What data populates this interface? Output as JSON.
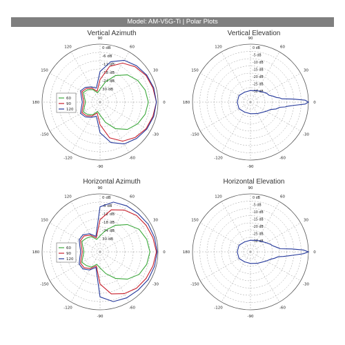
{
  "header": {
    "text": "Model: AM-V5G-Ti  |  Polar Plots",
    "background": "#7f7f7f"
  },
  "colors": {
    "series_60": "#3aa83a",
    "series_90": "#c81e2a",
    "series_120": "#22369a",
    "elevation_trace": "#22369a",
    "grid": "#9a9a9a"
  },
  "chart_data": [
    {
      "type": "polar",
      "title": "Vertical Azimuth",
      "angle_labels": [
        "90",
        "60",
        "30",
        "0",
        "-30",
        "-60",
        "-90",
        "-120",
        "-150",
        "180",
        "150",
        "120"
      ],
      "radial_labels": [
        "0 dB",
        "-6 dB",
        "-12 dB",
        "-18 dB",
        "-24 dB",
        "30 dB"
      ],
      "legend": [
        "60",
        "90",
        "120"
      ],
      "legend_placement": "left",
      "series": [
        {
          "name": "60",
          "angle_deg": [
            0,
            15,
            30,
            45,
            60,
            75,
            90,
            105,
            120,
            135,
            150,
            165,
            180
          ],
          "gain_db": [
            -6,
            -7,
            -9,
            -12,
            -17,
            -23,
            -28,
            -30,
            -27,
            -25,
            -24,
            -26,
            -27
          ]
        },
        {
          "name": "90",
          "angle_deg": [
            0,
            15,
            30,
            45,
            60,
            75,
            90,
            105,
            120,
            135,
            150,
            165,
            180
          ],
          "gain_db": [
            -1,
            -2,
            -3,
            -5,
            -8,
            -13,
            -22,
            -29,
            -26,
            -24,
            -23,
            -25,
            -26
          ]
        },
        {
          "name": "120",
          "angle_deg": [
            0,
            15,
            30,
            45,
            60,
            75,
            90,
            105,
            120,
            135,
            150,
            165,
            180
          ],
          "gain_db": [
            -1,
            -1.5,
            -2.5,
            -4,
            -6,
            -10,
            -17,
            -27,
            -25,
            -23,
            -22,
            -24,
            -25
          ]
        }
      ]
    },
    {
      "type": "polar",
      "title": "Vertical Elevation",
      "angle_labels": [
        "90",
        "60",
        "30",
        "0",
        "-30",
        "-60",
        "-90",
        "-120",
        "-150",
        "180",
        "150",
        "120"
      ],
      "radial_labels": [
        "0 dB",
        "-5 dB",
        "-10 dB",
        "-15 dB",
        "-20 dB",
        "-25 dB",
        "-30 dB"
      ],
      "series": [
        {
          "angle_deg": [
            0,
            2,
            4,
            6,
            8,
            10,
            15,
            20,
            30,
            45,
            60,
            90,
            120,
            150,
            180,
            -150,
            -120,
            -90,
            -60,
            -45,
            -30,
            -20,
            -15,
            -10,
            -8,
            -6,
            -4,
            -2
          ],
          "gain_db": [
            0,
            -2,
            -9,
            -16,
            -17,
            -19,
            -21,
            -23,
            -24,
            -26,
            -27,
            -28,
            -28,
            -27,
            -27,
            -27,
            -28,
            -28,
            -27,
            -26,
            -24,
            -22,
            -19,
            -17,
            -14,
            -12,
            -8,
            -2
          ]
        }
      ]
    },
    {
      "type": "polar",
      "title": "Horizontal Azimuth",
      "angle_labels": [
        "90",
        "60",
        "30",
        "0",
        "-30",
        "-60",
        "-90",
        "-120",
        "-150",
        "180",
        "150",
        "120"
      ],
      "radial_labels": [
        "0 dB",
        "-6 dB",
        "-12 dB",
        "-18 dB",
        "-24 dB",
        "30 dB"
      ],
      "legend": [
        "60",
        "90",
        "120"
      ],
      "legend_placement": "left",
      "series": [
        {
          "name": "60",
          "angle_deg": [
            0,
            15,
            30,
            45,
            60,
            75,
            90,
            105,
            120,
            135,
            150,
            165,
            180
          ],
          "gain_db": [
            -5,
            -6,
            -8,
            -12,
            -17,
            -22,
            -26,
            -28,
            -25,
            -24,
            -23,
            -25,
            -26
          ]
        },
        {
          "name": "90",
          "angle_deg": [
            0,
            15,
            30,
            45,
            60,
            75,
            90,
            105,
            120,
            135,
            150,
            165,
            180
          ],
          "gain_db": [
            -1,
            -2,
            -3,
            -4,
            -6,
            -9,
            -16,
            -27,
            -24,
            -22,
            -22,
            -24,
            -25
          ]
        },
        {
          "name": "120",
          "angle_deg": [
            0,
            15,
            30,
            45,
            60,
            75,
            90,
            105,
            120,
            135,
            150,
            165,
            180
          ],
          "gain_db": [
            -0.5,
            -1,
            -1.5,
            -2.5,
            -3,
            -4,
            -8,
            -26,
            -23,
            -21,
            -21,
            -23,
            -24
          ]
        }
      ]
    },
    {
      "type": "polar",
      "title": "Horizontal Elevation",
      "angle_labels": [
        "90",
        "60",
        "30",
        "0",
        "-30",
        "-60",
        "-90",
        "-120",
        "-150",
        "180",
        "150",
        "120"
      ],
      "radial_labels": [
        "0 dB",
        "-5 dB",
        "-10 dB",
        "-15 dB",
        "-20 dB",
        "-25 dB",
        "-30 dB"
      ],
      "series": [
        {
          "angle_deg": [
            0,
            2,
            4,
            6,
            8,
            10,
            15,
            20,
            30,
            45,
            60,
            90,
            120,
            150,
            180,
            -150,
            -120,
            -90,
            -60,
            -45,
            -30,
            -20,
            -15,
            -10,
            -8,
            -6,
            -4,
            -2
          ],
          "gain_db": [
            0,
            -3,
            -10,
            -17,
            -18,
            -19,
            -21,
            -22,
            -24,
            -26,
            -27,
            -28,
            -28,
            -27,
            -27,
            -27,
            -28,
            -28,
            -27,
            -26,
            -24,
            -22,
            -20,
            -18,
            -15,
            -12,
            -8,
            -3
          ]
        }
      ]
    }
  ]
}
